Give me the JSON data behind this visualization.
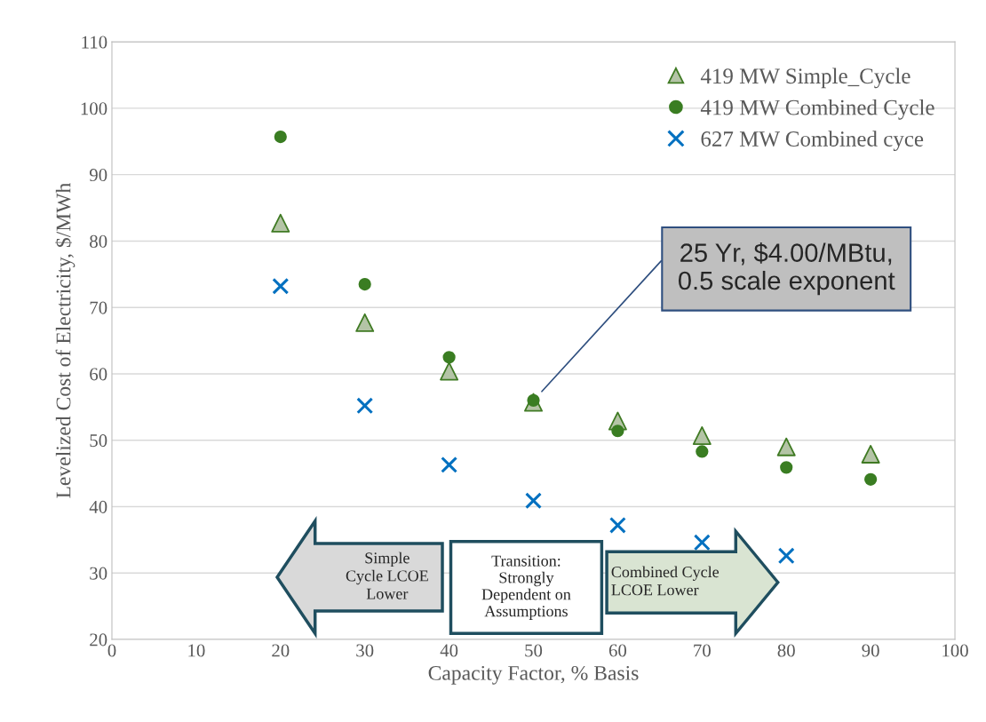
{
  "chart_data": {
    "type": "scatter",
    "xlabel": "Capacity Factor, % Basis",
    "ylabel": "Levelized Cost of Electricity, $/MWh",
    "xlim": [
      0,
      100
    ],
    "xticks": [
      0,
      10,
      20,
      30,
      40,
      50,
      60,
      70,
      80,
      90,
      100
    ],
    "ylim": [
      20,
      110
    ],
    "yticks": [
      20,
      30,
      40,
      50,
      60,
      70,
      80,
      90,
      100,
      110
    ],
    "grid": "y",
    "legend": "top right",
    "series": [
      {
        "name": "419 MW Simple_Cycle",
        "color": "#b4c4a6",
        "marker": "triangle",
        "x": [
          20,
          30,
          40,
          50,
          60,
          70,
          80,
          90
        ],
        "values": [
          82.7,
          67.7,
          60.4,
          55.7,
          52.9,
          50.7,
          49.0,
          47.9
        ]
      },
      {
        "name": "419 MW Combined Cycle",
        "color": "#3a7d22",
        "marker": "circle",
        "x": [
          20,
          30,
          40,
          50,
          60,
          70,
          80,
          90
        ],
        "values": [
          95.7,
          73.5,
          62.5,
          56.0,
          51.4,
          48.3,
          45.9,
          44.1
        ]
      },
      {
        "name": "627 MW Combined cyce",
        "color": "#0070c0",
        "marker": "cross",
        "x": [
          20,
          30,
          40,
          50,
          60,
          70,
          80
        ],
        "values": [
          73.2,
          55.2,
          46.3,
          40.9,
          37.2,
          34.6,
          32.6
        ]
      }
    ],
    "annotations": [
      "25 Yr, $4.00/MBtu,\n0.5 scale exponent",
      "Simple\nCycle LCOE\nLower",
      "Transition:\nStrongly\nDependent on\nAssumptions",
      "Combined Cycle\nLCOE Lower"
    ]
  }
}
